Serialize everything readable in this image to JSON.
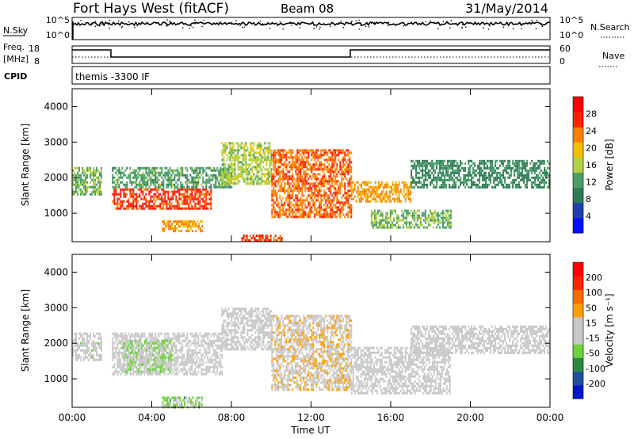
{
  "header": {
    "station": "Fort Hays West (fitACF)",
    "beam": "Beam 08",
    "date": "31/May/2014"
  },
  "aux_panels": {
    "nsky": {
      "label": "N.Sky",
      "left_ticks": [
        "10^5",
        "10^0"
      ],
      "right_ticks": [
        "10^5",
        "10^0"
      ],
      "right_label": "N.Search"
    },
    "freq": {
      "label": "Freq.",
      "unit": "[MHz]",
      "left_ticks": [
        "18",
        "8"
      ],
      "right_ticks": [
        "60",
        "0"
      ],
      "right_label": "Nave"
    },
    "cpid": {
      "label": "CPID",
      "value": "themis -3300 IF"
    }
  },
  "colors": {
    "power_scale": [
      "#0010ff",
      "#1f3fb0",
      "#2f7a55",
      "#4aa068",
      "#b2d040",
      "#f0c000",
      "#ff8000",
      "#ff2000",
      "#ff0000"
    ],
    "velocity_scale": [
      "#0018c8",
      "#204fa0",
      "#2a8a3c",
      "#6ed23c",
      "#c8c8c8",
      "#c8c8c8",
      "#ff9e00",
      "#ff6a00",
      "#ff2400",
      "#ff0000"
    ],
    "noise_trace": "#000000"
  },
  "chart_data": [
    {
      "type": "heatmap",
      "name": "power",
      "xlabel": "",
      "ylabel": "Slant Range [km]",
      "x_ticks": [
        "00:00",
        "04:00",
        "08:00",
        "12:00",
        "16:00",
        "20:00",
        "00:00"
      ],
      "xlim": [
        0,
        24
      ],
      "y_ticks": [
        "1000",
        "2000",
        "3000",
        "4000"
      ],
      "ylim": [
        200,
        4500
      ],
      "colorbar": {
        "label": "Power [dB]",
        "ticks": [
          "28",
          "24",
          "20",
          "16",
          "12",
          "8",
          "4"
        ],
        "range": [
          0,
          32
        ]
      },
      "echo_bands": [
        {
          "t": [
            0.0,
            1.5
          ],
          "range_km": [
            1500,
            2300
          ],
          "power_db": 14
        },
        {
          "t": [
            2.0,
            7.0
          ],
          "range_km": [
            1150,
            1700
          ],
          "power_db": 26
        },
        {
          "t": [
            2.0,
            8.0
          ],
          "range_km": [
            1700,
            2300
          ],
          "power_db": 12
        },
        {
          "t": [
            7.5,
            10.0
          ],
          "range_km": [
            1800,
            3000
          ],
          "power_db": 16
        },
        {
          "t": [
            10.0,
            14.0
          ],
          "range_km": [
            900,
            2800
          ],
          "power_db": 24
        },
        {
          "t": [
            14.0,
            17.0
          ],
          "range_km": [
            1300,
            1900
          ],
          "power_db": 22
        },
        {
          "t": [
            15.0,
            19.0
          ],
          "range_km": [
            600,
            1100
          ],
          "power_db": 14
        },
        {
          "t": [
            17.0,
            24.0
          ],
          "range_km": [
            1700,
            2500
          ],
          "power_db": 10
        },
        {
          "t": [
            4.5,
            6.5
          ],
          "range_km": [
            500,
            800
          ],
          "power_db": 22
        },
        {
          "t": [
            8.5,
            10.5
          ],
          "range_km": [
            200,
            400
          ],
          "power_db": 26
        }
      ]
    },
    {
      "type": "heatmap",
      "name": "velocity",
      "xlabel": "Time UT",
      "ylabel": "Slant Range [km]",
      "x_ticks": [
        "00:00",
        "04:00",
        "08:00",
        "12:00",
        "16:00",
        "20:00",
        "00:00"
      ],
      "xlim": [
        0,
        24
      ],
      "y_ticks": [
        "1000",
        "2000",
        "3000",
        "4000"
      ],
      "ylim": [
        200,
        4500
      ],
      "colorbar": {
        "label": "Velocity [m s⁻¹]",
        "ticks": [
          "200",
          "100",
          "50",
          "15",
          "-15",
          "-50",
          "-100",
          "-200"
        ],
        "range": [
          -250,
          250
        ]
      },
      "echo_bands": [
        {
          "t": [
            0.0,
            1.5
          ],
          "range_km": [
            1500,
            2300
          ],
          "velocity": -10
        },
        {
          "t": [
            2.0,
            7.5
          ],
          "range_km": [
            1100,
            2300
          ],
          "velocity": -5
        },
        {
          "t": [
            2.5,
            5.0
          ],
          "range_km": [
            1200,
            2100
          ],
          "velocity": -40
        },
        {
          "t": [
            7.5,
            10.0
          ],
          "range_km": [
            1800,
            3000
          ],
          "velocity": 5
        },
        {
          "t": [
            10.0,
            14.0
          ],
          "range_km": [
            700,
            2800
          ],
          "velocity": 30
        },
        {
          "t": [
            14.0,
            19.0
          ],
          "range_km": [
            600,
            1900
          ],
          "velocity": -5
        },
        {
          "t": [
            17.0,
            24.0
          ],
          "range_km": [
            1700,
            2500
          ],
          "velocity": 0
        },
        {
          "t": [
            4.5,
            6.5
          ],
          "range_km": [
            200,
            500
          ],
          "velocity": -60
        }
      ]
    }
  ]
}
